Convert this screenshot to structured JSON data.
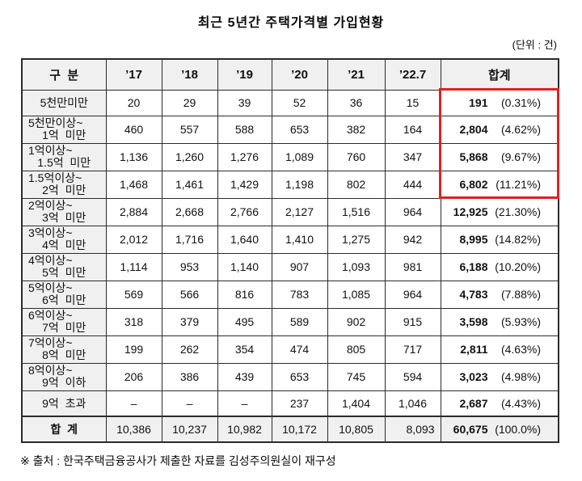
{
  "title": "최근 5년간 주택가격별 가입현황",
  "unit_note": "(단위 : 건)",
  "footer_note": "※ 출처 : 한국주택금융공사가 제출한 자료를 김성주의원실이 재구성",
  "highlight_color": "#e02121",
  "table": {
    "headers": [
      "구  분",
      "’17",
      "’18",
      "’19",
      "’20",
      "’21",
      "’22.7",
      "합계"
    ],
    "rows": [
      {
        "label1": "5천만미만",
        "label2": "",
        "single": true,
        "values": [
          "20",
          "29",
          "39",
          "52",
          "36",
          "15"
        ],
        "total": "191",
        "pct": "(0.31%)"
      },
      {
        "label1": "5천만이상~",
        "label2": "1억  미만",
        "single": false,
        "values": [
          "460",
          "557",
          "588",
          "653",
          "382",
          "164"
        ],
        "total": "2,804",
        "pct": "(4.62%)"
      },
      {
        "label1": "1억이상~",
        "label2": "1.5억  미만",
        "single": false,
        "values": [
          "1,136",
          "1,260",
          "1,276",
          "1,089",
          "760",
          "347"
        ],
        "total": "5,868",
        "pct": "(9.67%)"
      },
      {
        "label1": "1.5억이상~",
        "label2": "2억  미만",
        "single": false,
        "values": [
          "1,468",
          "1,461",
          "1,429",
          "1,198",
          "802",
          "444"
        ],
        "total": "6,802",
        "pct": "(11.21%)"
      },
      {
        "label1": "2억이상~",
        "label2": "3억  미만",
        "single": false,
        "values": [
          "2,884",
          "2,668",
          "2,766",
          "2,127",
          "1,516",
          "964"
        ],
        "total": "12,925",
        "pct": "(21.30%)"
      },
      {
        "label1": "3억이상~",
        "label2": "4억  미만",
        "single": false,
        "values": [
          "2,012",
          "1,716",
          "1,640",
          "1,410",
          "1,275",
          "942"
        ],
        "total": "8,995",
        "pct": "(14.82%)"
      },
      {
        "label1": "4억이상~",
        "label2": "5억  미만",
        "single": false,
        "values": [
          "1,114",
          "953",
          "1,140",
          "907",
          "1,093",
          "981"
        ],
        "total": "6,188",
        "pct": "(10.20%)"
      },
      {
        "label1": "5억이상~",
        "label2": "6억  미만",
        "single": false,
        "values": [
          "569",
          "566",
          "816",
          "783",
          "1,085",
          "964"
        ],
        "total": "4,783",
        "pct": "(7.88%)"
      },
      {
        "label1": "6억이상~",
        "label2": "7억  미만",
        "single": false,
        "values": [
          "318",
          "379",
          "495",
          "589",
          "902",
          "915"
        ],
        "total": "3,598",
        "pct": "(5.93%)"
      },
      {
        "label1": "7억이상~",
        "label2": "8억  미만",
        "single": false,
        "values": [
          "199",
          "262",
          "354",
          "474",
          "805",
          "717"
        ],
        "total": "2,811",
        "pct": "(4.63%)"
      },
      {
        "label1": "8억이상~",
        "label2": "9억  이하",
        "single": false,
        "values": [
          "206",
          "386",
          "439",
          "653",
          "745",
          "594"
        ],
        "total": "3,023",
        "pct": "(4.98%)"
      },
      {
        "label1": "9억  초과",
        "label2": "",
        "single": true,
        "values": [
          "–",
          "–",
          "–",
          "237",
          "1,404",
          "1,046"
        ],
        "total": "2,687",
        "pct": "(4.43%)"
      },
      {
        "label1": "합  계",
        "label2": "",
        "single": true,
        "is_total": true,
        "values": [
          "10,386",
          "10,237",
          "10,982",
          "10,172",
          "10,805",
          "8,093"
        ],
        "total": "60,675",
        "pct": "(100.0%)"
      }
    ]
  }
}
